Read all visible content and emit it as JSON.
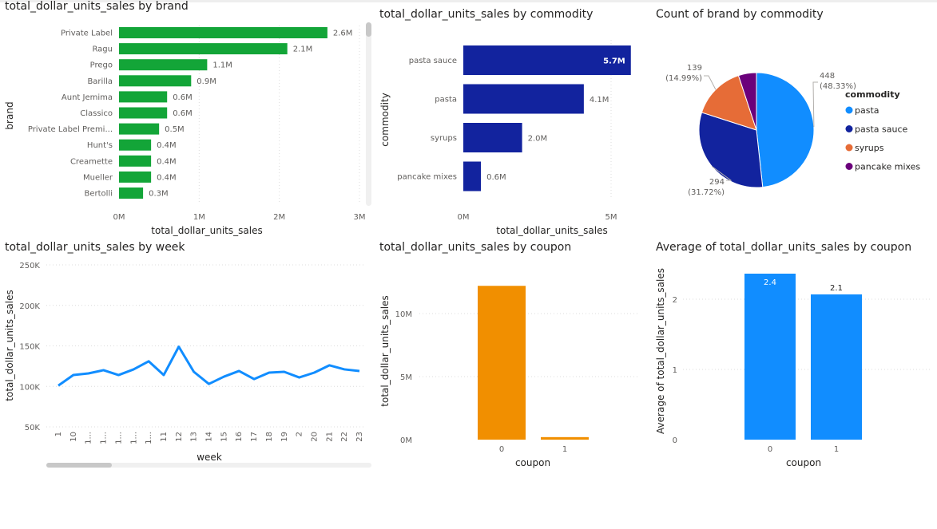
{
  "chart_data": [
    {
      "id": "brand",
      "type": "bar",
      "orientation": "horizontal",
      "title": "total_dollar_units_sales by brand",
      "xlabel": "total_dollar_units_sales",
      "ylabel": "brand",
      "categories": [
        "Private Label",
        "Ragu",
        "Prego",
        "Barilla",
        "Aunt Jemima",
        "Classico",
        "Private Label Premi...",
        "Hunt's",
        "Creamette",
        "Mueller",
        "Bertolli"
      ],
      "values": [
        2.6,
        2.1,
        1.1,
        0.9,
        0.6,
        0.6,
        0.5,
        0.4,
        0.4,
        0.4,
        0.3
      ],
      "data_labels": [
        "2.6M",
        "2.1M",
        "1.1M",
        "0.9M",
        "0.6M",
        "0.6M",
        "0.5M",
        "0.4M",
        "0.4M",
        "0.4M",
        "0.3M"
      ],
      "xticks": [
        "0M",
        "1M",
        "2M",
        "3M"
      ],
      "xlim": [
        0,
        3
      ],
      "value_unit": "M",
      "color": "#13a538"
    },
    {
      "id": "commodity",
      "type": "bar",
      "orientation": "horizontal",
      "title": "total_dollar_units_sales by commodity",
      "xlabel": "total_dollar_units_sales",
      "ylabel": "commodity",
      "categories": [
        "pasta sauce",
        "pasta",
        "syrups",
        "pancake mixes"
      ],
      "values": [
        5.7,
        4.1,
        2.0,
        0.6
      ],
      "data_labels": [
        "5.7M",
        "4.1M",
        "2.0M",
        "0.6M"
      ],
      "xticks": [
        "0M",
        "5M"
      ],
      "xlim": [
        0,
        5.8
      ],
      "value_unit": "M",
      "color": "#12239e"
    },
    {
      "id": "pie",
      "type": "pie",
      "title": "Count of brand by commodity",
      "legend_title": "commodity",
      "legend_position": "right",
      "categories": [
        "pasta",
        "pasta sauce",
        "syrups",
        "pancake mixes"
      ],
      "values": [
        448,
        294,
        139,
        47
      ],
      "labels": [
        {
          "count": "448",
          "pct": "(48.33%)"
        },
        {
          "count": "294",
          "pct": "(31.72%)"
        },
        {
          "count": "139",
          "pct": "(14.99%)"
        },
        {
          "count": "",
          "pct": ""
        }
      ],
      "colors": [
        "#118dff",
        "#12239e",
        "#e66c37",
        "#6b007b"
      ]
    },
    {
      "id": "week",
      "type": "line",
      "title": "total_dollar_units_sales by week",
      "xlabel": "week",
      "ylabel": "total_dollar_units_sales",
      "x": [
        "1",
        "10",
        "1...",
        "1...",
        "1...",
        "1...",
        "1...",
        "11",
        "12",
        "13",
        "14",
        "15",
        "16",
        "17",
        "18",
        "19",
        "2",
        "20",
        "21",
        "22",
        "23"
      ],
      "values": [
        101,
        114,
        116,
        120,
        114,
        121,
        131,
        114,
        149,
        118,
        103,
        112,
        119,
        109,
        117,
        118,
        111,
        117,
        126,
        121,
        119
      ],
      "yticks": [
        "50K",
        "100K",
        "150K",
        "200K",
        "250K"
      ],
      "ylim": [
        50,
        250
      ],
      "value_unit": "K",
      "color": "#118dff"
    },
    {
      "id": "coupon",
      "type": "bar",
      "title": "total_dollar_units_sales by coupon",
      "xlabel": "coupon",
      "ylabel": "total_dollar_units_sales",
      "categories": [
        "0",
        "1"
      ],
      "values": [
        12.2,
        0.2
      ],
      "yticks": [
        "0M",
        "5M",
        "10M"
      ],
      "ylim": [
        0,
        13
      ],
      "value_unit": "M",
      "color": "#f18f00"
    },
    {
      "id": "avgcoupon",
      "type": "bar",
      "title": "Average of total_dollar_units_sales by coupon",
      "xlabel": "coupon",
      "ylabel": "Average of total_dollar_units_sales",
      "categories": [
        "0",
        "1"
      ],
      "values": [
        2.4,
        2.1
      ],
      "data_labels": [
        "2.4",
        "2.1"
      ],
      "yticks": [
        "0",
        "1",
        "2"
      ],
      "ylim": [
        0,
        2.4
      ],
      "color": "#118dff"
    }
  ]
}
